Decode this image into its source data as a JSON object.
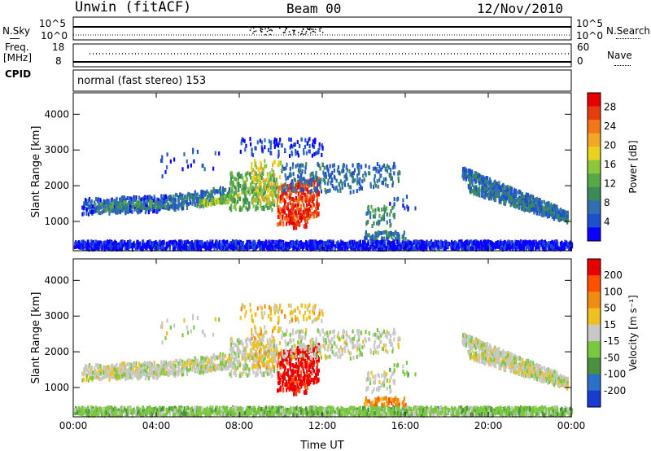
{
  "header": {
    "station": "Unwin (fitACF)",
    "beam": "Beam 00",
    "date": "12/Nov/2010"
  },
  "nsky_panel": {
    "left_label": "N.Sky",
    "right_label": "N.Search",
    "left_ticks": [
      "10^5",
      "10^0"
    ],
    "right_ticks": [
      "10^5",
      "10^0"
    ]
  },
  "freq_panel": {
    "left_label_line1": "Freq.",
    "left_label_line2": "[MHz]",
    "left_ticks": [
      "18",
      "8"
    ],
    "right_label": "Nave",
    "right_ticks": [
      "60",
      "0"
    ]
  },
  "cpid_panel": {
    "label": "CPID",
    "text": "normal (fast stereo) 153"
  },
  "chart_data": [
    {
      "type": "heatmap",
      "title": "",
      "xlabel": "Time UT",
      "ylabel": "Slant Range [km]",
      "x_ticks": [
        "00:00",
        "04:00",
        "08:00",
        "12:00",
        "16:00",
        "20:00",
        "00:00"
      ],
      "y_ticks": [
        "1000",
        "2000",
        "3000",
        "4000"
      ],
      "ylim": [
        180,
        4600
      ],
      "colorbar": {
        "label": "Power [dB]",
        "ticks": [
          "4",
          "8",
          "12",
          "16",
          "20",
          "24",
          "28"
        ],
        "colors": [
          "#0a00ff",
          "#1e4fcf",
          "#2f6fb0",
          "#3a8a5a",
          "#58a848",
          "#8cc63c",
          "#e8d21c",
          "#f5a623",
          "#f07818",
          "#e63c10",
          "#e60000"
        ]
      }
    },
    {
      "type": "heatmap",
      "title": "",
      "xlabel": "Time UT",
      "ylabel": "Slant Range [km]",
      "x_ticks": [
        "00:00",
        "04:00",
        "08:00",
        "12:00",
        "16:00",
        "20:00",
        "00:00"
      ],
      "y_ticks": [
        "1000",
        "2000",
        "3000",
        "4000"
      ],
      "ylim": [
        180,
        4600
      ],
      "colorbar": {
        "label": "Velocity [m s⁻¹]",
        "ticks": [
          "200",
          "100",
          "50",
          "15",
          "-15",
          "-50",
          "-100",
          "-200"
        ],
        "colors": [
          "#1a3ad0",
          "#2a70c8",
          "#4a9040",
          "#7ac840",
          "#c8c8c8",
          "#f0c020",
          "#f08c10",
          "#ff5000",
          "#e80000"
        ]
      }
    }
  ]
}
